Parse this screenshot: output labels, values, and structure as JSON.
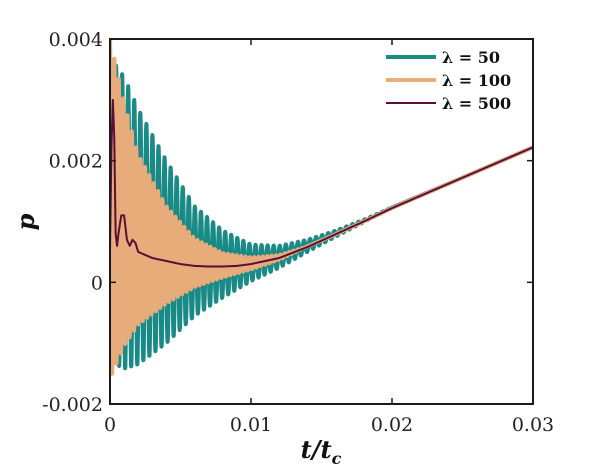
{
  "chart_data": {
    "type": "line",
    "title": "",
    "xlabel": "t/t_c",
    "ylabel": "p",
    "xlim": [
      0,
      0.03
    ],
    "ylim": [
      -0.002,
      0.004
    ],
    "x_ticks": [
      0,
      0.01,
      0.02,
      0.03
    ],
    "x_tick_labels": [
      "0",
      "0.01",
      "0.02",
      "0.03"
    ],
    "y_ticks": [
      -0.002,
      0,
      0.002,
      0.004
    ],
    "y_tick_labels": [
      "-0.002",
      "0",
      "0.002",
      "0.004"
    ],
    "grid": false,
    "legend_position": "top-right",
    "series": [
      {
        "name": "λ = 50",
        "color": "#1a8a86",
        "line_width": 4,
        "trend": {
          "x": [
            0,
            0.002,
            0.004,
            0.006,
            0.008,
            0.01,
            0.012,
            0.014,
            0.016,
            0.018,
            0.02,
            0.025,
            0.03
          ],
          "y": [
            0.0012,
            0.00075,
            0.0005,
            0.00035,
            0.0003,
            0.00032,
            0.00042,
            0.0006,
            0.0008,
            0.00101,
            0.00123,
            0.00172,
            0.00222
          ]
        },
        "oscillation": {
          "amplitude_envelope": {
            "x": [
              0,
              0.001,
              0.002,
              0.004,
              0.006,
              0.008,
              0.01,
              0.012,
              0.014,
              0.016,
              0.018,
              0.02
            ],
            "y": [
              0.0025,
              0.0024,
              0.0021,
              0.0015,
              0.0009,
              0.00055,
              0.0003,
              0.00018,
              0.0001,
              5e-05,
              2e-05,
              0
            ]
          },
          "period": 0.00043
        }
      },
      {
        "name": "λ = 100",
        "color": "#e8ac7a",
        "line_width": 4,
        "trend": {
          "x": [
            0,
            0.002,
            0.004,
            0.006,
            0.008,
            0.01,
            0.012,
            0.014,
            0.016,
            0.018,
            0.02,
            0.025,
            0.03
          ],
          "y": [
            0.0012,
            0.0007,
            0.00045,
            0.00032,
            0.00028,
            0.00031,
            0.00041,
            0.00059,
            0.00079,
            0.001,
            0.00122,
            0.00172,
            0.00222
          ]
        },
        "oscillation": {
          "amplitude_envelope": {
            "x": [
              0,
              0.001,
              0.002,
              0.004,
              0.006,
              0.008,
              0.01,
              0.012,
              0.014
            ],
            "y": [
              0.0028,
              0.002,
              0.0014,
              0.0008,
              0.0004,
              0.0002,
              0.0001,
              4e-05,
              0
            ]
          },
          "period": 0.00031
        }
      },
      {
        "name": "λ = 500",
        "color": "#5a0e3a",
        "line_width": 2,
        "x": [
          0,
          0.0001,
          0.0002,
          0.0003,
          0.0004,
          0.0005,
          0.0006,
          0.0008,
          0.001,
          0.0012,
          0.0014,
          0.0016,
          0.0018,
          0.002,
          0.0025,
          0.003,
          0.004,
          0.005,
          0.006,
          0.007,
          0.008,
          0.009,
          0.01,
          0.012,
          0.014,
          0.016,
          0.018,
          0.02,
          0.022,
          0.024,
          0.026,
          0.028,
          0.03
        ],
        "y": [
          0.0005,
          0.0022,
          0.003,
          0.0024,
          0.0008,
          0.0006,
          0.0008,
          0.0011,
          0.0011,
          0.0007,
          0.0006,
          0.0007,
          0.00065,
          0.0005,
          0.00045,
          0.0004,
          0.00035,
          0.0003,
          0.00027,
          0.00026,
          0.00026,
          0.00027,
          0.0003,
          0.0004,
          0.00058,
          0.00079,
          0.001,
          0.00122,
          0.00142,
          0.00162,
          0.00182,
          0.00202,
          0.00222
        ]
      }
    ]
  }
}
